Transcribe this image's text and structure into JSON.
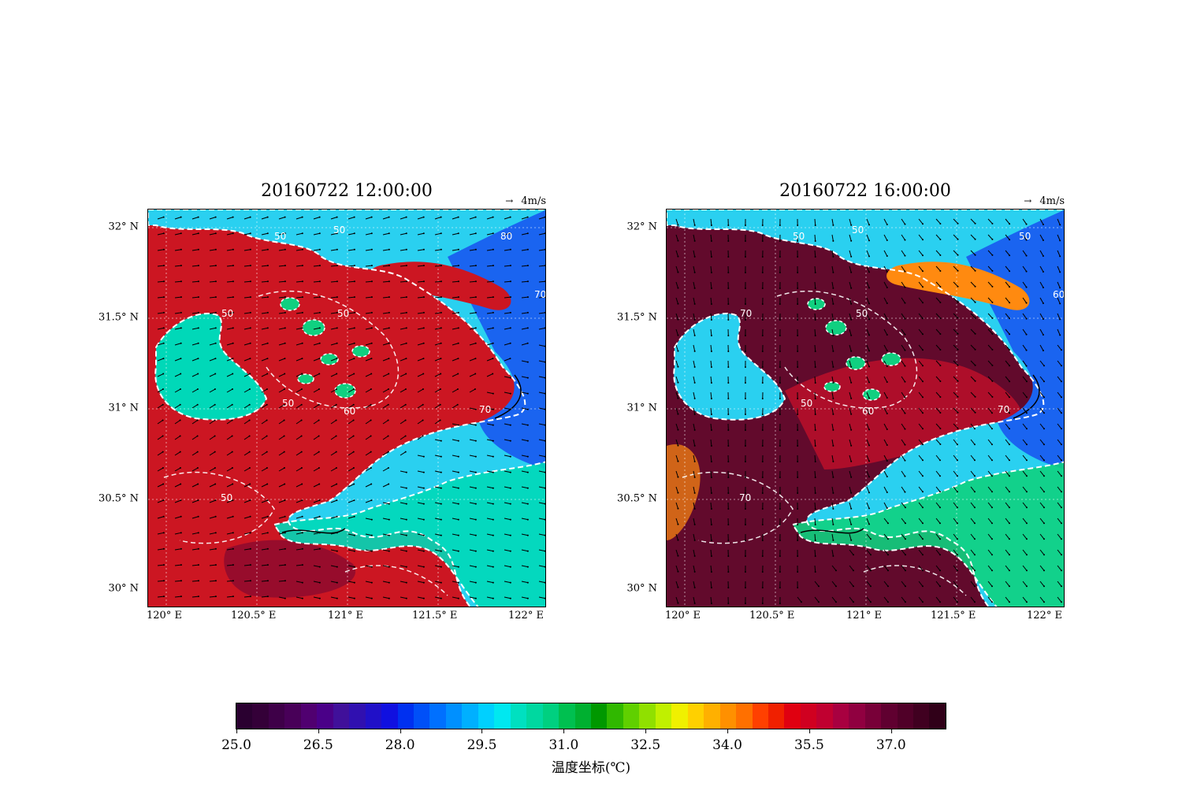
{
  "panels": [
    {
      "title": "20160722 12:00:00",
      "vector_key": "4m/s",
      "lat_labels": [
        "32° N",
        "31.5° N",
        "31° N",
        "30.5° N",
        "30° N"
      ],
      "lon_labels": [
        "120° E",
        "120.5° E",
        "121° E",
        "121.5° E",
        "122° E"
      ],
      "contour_labels": [
        "50",
        "50",
        "50",
        "80",
        "70",
        "50",
        "50",
        "60",
        "70",
        "50"
      ]
    },
    {
      "title": "20160722 16:00:00",
      "vector_key": "4m/s",
      "lat_labels": [
        "32° N",
        "31.5° N",
        "31° N",
        "30.5° N",
        "30° N"
      ],
      "lon_labels": [
        "120° E",
        "120.5° E",
        "121° E",
        "121.5° E",
        "122° E"
      ],
      "contour_labels": [
        "50",
        "50",
        "70",
        "50",
        "60",
        "50",
        "50",
        "60",
        "70",
        "70"
      ]
    }
  ],
  "colorbar": {
    "min": 25.0,
    "max": 38.0,
    "ticks": [
      "25.0",
      "26.5",
      "28.0",
      "29.5",
      "31.0",
      "32.5",
      "34.0",
      "35.5",
      "37.0"
    ],
    "label": "温度坐标(℃)",
    "colors": [
      "#2a0030",
      "#340038",
      "#3e0048",
      "#480058",
      "#500070",
      "#4a0088",
      "#40109a",
      "#3010b0",
      "#2010c8",
      "#1010e0",
      "#0030f0",
      "#0050f8",
      "#0070ff",
      "#0090ff",
      "#00b0ff",
      "#00d0ff",
      "#00e8f0",
      "#00e0c0",
      "#00d8a0",
      "#00d080",
      "#00c050",
      "#00b030",
      "#009800",
      "#30b800",
      "#60d000",
      "#90e000",
      "#c0f000",
      "#f0f000",
      "#ffd000",
      "#ffb000",
      "#ff9000",
      "#ff7000",
      "#ff4000",
      "#f02000",
      "#e00010",
      "#d00020",
      "#c00030",
      "#a80040",
      "#900040",
      "#780038",
      "#600030",
      "#500028",
      "#400020",
      "#300018"
    ]
  },
  "palette": {
    "left_land": "#cc1622",
    "left_land_dark": "#8a0a30",
    "right_land": "#620a2c",
    "right_land_warm": "#c8102a",
    "sea_blue": "#1a64f0",
    "sea_light": "#2ad0f0",
    "sea_teal": "#00d8b8",
    "lake_green": "#10d080",
    "orange": "#ff8a10",
    "yellow": "#e8f010",
    "contour": "#ffffff"
  }
}
